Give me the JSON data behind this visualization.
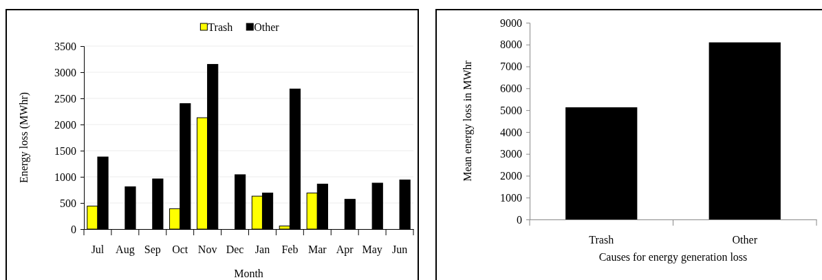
{
  "chart_data": [
    {
      "type": "bar",
      "xlabel": "Month",
      "ylabel": "Energy loss (MWhr)",
      "categories": [
        "Jul",
        "Aug",
        "Sep",
        "Oct",
        "Nov",
        "Dec",
        "Jan",
        "Feb",
        "Mar",
        "Apr",
        "May",
        "Jun"
      ],
      "series": [
        {
          "name": "Trash",
          "color": "#ffff00",
          "values": [
            440,
            null,
            null,
            390,
            2130,
            null,
            630,
            60,
            690,
            null,
            null,
            null
          ]
        },
        {
          "name": "Other",
          "color": "#000000",
          "values": [
            1380,
            810,
            960,
            2400,
            3150,
            1040,
            690,
            2680,
            860,
            570,
            880,
            940
          ]
        }
      ],
      "ylim": [
        0,
        3500
      ],
      "yticks": [
        0,
        500,
        1000,
        1500,
        2000,
        2500,
        3000,
        3500
      ],
      "grid": "y",
      "legend": "top"
    },
    {
      "type": "bar",
      "xlabel": "Causes for energy generation loss",
      "ylabel": "Mean energy loss in MWhr",
      "categories": [
        "Trash",
        "Other"
      ],
      "values": [
        5130,
        8100
      ],
      "color": "#000000",
      "ylim": [
        0,
        9000
      ],
      "yticks": [
        0,
        1000,
        2000,
        3000,
        4000,
        5000,
        6000,
        7000,
        8000,
        9000
      ]
    }
  ]
}
